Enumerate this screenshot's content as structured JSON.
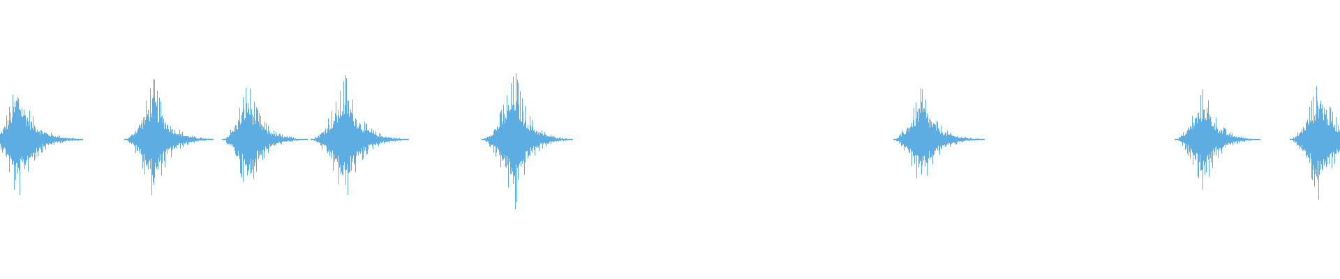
{
  "waveform": {
    "color": "#5DADE2",
    "background": "#FFFFFF"
  }
}
